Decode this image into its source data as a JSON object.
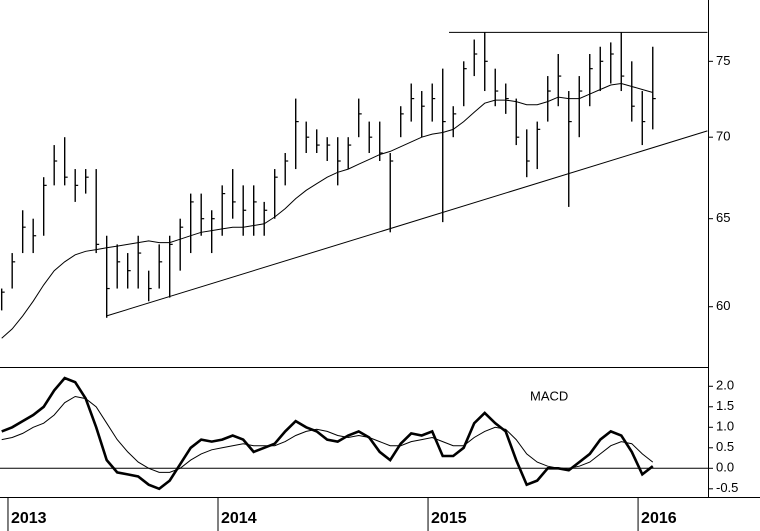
{
  "chart_data": [
    {
      "type": "ohlc",
      "log_scale": true,
      "color": "#000000",
      "x": [
        2012.97,
        2013.02,
        2013.07,
        2013.12,
        2013.17,
        2013.22,
        2013.27,
        2013.32,
        2013.37,
        2013.42,
        2013.47,
        2013.52,
        2013.57,
        2013.62,
        2013.67,
        2013.72,
        2013.77,
        2013.82,
        2013.87,
        2013.92,
        2013.97,
        2014.02,
        2014.07,
        2014.12,
        2014.17,
        2014.22,
        2014.27,
        2014.32,
        2014.37,
        2014.42,
        2014.47,
        2014.52,
        2014.57,
        2014.62,
        2014.67,
        2014.72,
        2014.77,
        2014.82,
        2014.87,
        2014.92,
        2014.97,
        2015.02,
        2015.07,
        2015.12,
        2015.17,
        2015.22,
        2015.27,
        2015.32,
        2015.37,
        2015.42,
        2015.47,
        2015.52,
        2015.57,
        2015.62,
        2015.67,
        2015.72,
        2015.77,
        2015.82,
        2015.87,
        2015.92,
        2015.97,
        2016.02,
        2016.07
      ],
      "high": [
        61,
        63,
        65.5,
        65,
        67.5,
        69.5,
        70,
        68,
        68,
        68,
        64,
        63.5,
        63,
        64,
        62,
        63.5,
        64,
        65,
        66.5,
        66.5,
        65.5,
        67,
        68,
        67,
        67,
        66,
        68,
        69,
        72.5,
        71,
        70.5,
        70,
        70,
        70,
        72.5,
        71,
        71,
        69,
        72,
        73.5,
        73,
        73.5,
        74.5,
        72,
        75,
        76.5,
        77,
        74.5,
        73.5,
        72.5,
        70.5,
        71,
        74,
        75.5,
        73,
        74,
        75.5,
        76,
        76.3,
        77,
        75,
        73,
        76
      ],
      "low": [
        59.8,
        61,
        63,
        63,
        64,
        67,
        67,
        66,
        66.5,
        63,
        59.4,
        61,
        61,
        61,
        60.3,
        61,
        60.5,
        62,
        63,
        64,
        63,
        64,
        65,
        64,
        64,
        64,
        65,
        67,
        68,
        69,
        69,
        68.5,
        67,
        68,
        70,
        69,
        68.5,
        64.2,
        70,
        71,
        70,
        71,
        64.8,
        70,
        72,
        74,
        73,
        72,
        71.5,
        69.5,
        67.5,
        68,
        71,
        72,
        65.7,
        70,
        72,
        73,
        73.5,
        73,
        71,
        69.5,
        70.5
      ],
      "close": [
        60.8,
        62.5,
        64.5,
        64,
        67,
        68.5,
        67.5,
        67,
        67.5,
        63.5,
        61,
        62.5,
        62,
        63,
        61,
        62.5,
        63.5,
        64.5,
        66,
        65,
        65,
        66.5,
        66,
        65.5,
        66,
        65.5,
        67.5,
        68.5,
        71,
        70,
        69.5,
        69.5,
        68.5,
        69.5,
        71.5,
        70,
        69,
        68.5,
        71.5,
        72.5,
        72,
        72.5,
        71,
        71.5,
        74.5,
        75.5,
        75,
        73,
        72.5,
        70,
        68.5,
        70.5,
        73,
        74,
        71,
        73,
        74.5,
        75,
        75.5,
        74,
        72,
        71,
        72.5
      ],
      "series": [
        {
          "color": "#000000",
          "values": [
            58.3,
            58.8,
            59.5,
            60.3,
            61.2,
            62,
            62.5,
            62.9,
            63.1,
            63.2,
            63.3,
            63.4,
            63.5,
            63.6,
            63.7,
            63.6,
            63.6,
            63.8,
            64,
            64.2,
            64.3,
            64.4,
            64.5,
            64.5,
            64.6,
            64.7,
            65.1,
            65.6,
            66.2,
            66.7,
            67.1,
            67.5,
            67.8,
            68,
            68.3,
            68.6,
            68.9,
            69.1,
            69.4,
            69.7,
            70,
            70.2,
            70.3,
            70.5,
            71,
            71.6,
            72.2,
            72.4,
            72.4,
            72.3,
            72.1,
            72.1,
            72.3,
            72.6,
            72.5,
            72.5,
            72.8,
            73.1,
            73.4,
            73.5,
            73.3,
            73.1,
            72.9
          ]
        }
      ],
      "lines": [
        {
          "x": [
            2013.47,
            2016.33
          ],
          "values": [
            59.5,
            70.4
          ]
        },
        {
          "x": [
            2015.1,
            2016.33
          ],
          "values": [
            77,
            77
          ]
        }
      ],
      "xlim": [
        2012.962,
        2016.333
      ],
      "ylim": [
        56.8,
        79.3
      ],
      "yticks": [
        60,
        65,
        70,
        75
      ]
    },
    {
      "type": "line",
      "annotation": "MACD",
      "reference_line": 0,
      "x": [
        2012.97,
        2013.02,
        2013.07,
        2013.12,
        2013.17,
        2013.22,
        2013.27,
        2013.32,
        2013.37,
        2013.42,
        2013.47,
        2013.52,
        2013.57,
        2013.62,
        2013.67,
        2013.72,
        2013.77,
        2013.82,
        2013.87,
        2013.92,
        2013.97,
        2014.02,
        2014.07,
        2014.12,
        2014.17,
        2014.22,
        2014.27,
        2014.32,
        2014.37,
        2014.42,
        2014.47,
        2014.52,
        2014.57,
        2014.62,
        2014.67,
        2014.72,
        2014.77,
        2014.82,
        2014.87,
        2014.92,
        2014.97,
        2015.02,
        2015.07,
        2015.12,
        2015.17,
        2015.22,
        2015.27,
        2015.32,
        2015.37,
        2015.42,
        2015.47,
        2015.52,
        2015.57,
        2015.62,
        2015.67,
        2015.72,
        2015.77,
        2015.82,
        2015.87,
        2015.92,
        2015.97,
        2016.02,
        2016.07
      ],
      "series": [
        {
          "color": "#000000",
          "width": 2.6,
          "values": [
            0.9,
            1.0,
            1.15,
            1.3,
            1.5,
            1.9,
            2.2,
            2.1,
            1.7,
            1.0,
            0.2,
            -0.1,
            -0.15,
            -0.2,
            -0.4,
            -0.5,
            -0.3,
            0.1,
            0.5,
            0.7,
            0.65,
            0.7,
            0.8,
            0.7,
            0.4,
            0.5,
            0.6,
            0.9,
            1.15,
            1.0,
            0.9,
            0.7,
            0.65,
            0.8,
            0.9,
            0.75,
            0.4,
            0.2,
            0.6,
            0.85,
            0.8,
            0.9,
            0.3,
            0.3,
            0.5,
            1.1,
            1.35,
            1.1,
            0.9,
            0.2,
            -0.4,
            -0.3,
            0.0,
            0.0,
            -0.05,
            0.15,
            0.35,
            0.7,
            0.9,
            0.8,
            0.4,
            -0.15,
            0.05
          ]
        },
        {
          "color": "#000000",
          "width": 1,
          "values": [
            0.7,
            0.75,
            0.85,
            1.0,
            1.1,
            1.3,
            1.6,
            1.75,
            1.7,
            1.5,
            1.1,
            0.7,
            0.4,
            0.15,
            0.0,
            -0.1,
            -0.1,
            0.0,
            0.2,
            0.35,
            0.45,
            0.5,
            0.55,
            0.6,
            0.55,
            0.55,
            0.55,
            0.65,
            0.8,
            0.9,
            0.95,
            0.9,
            0.8,
            0.75,
            0.8,
            0.75,
            0.65,
            0.55,
            0.55,
            0.65,
            0.7,
            0.75,
            0.65,
            0.55,
            0.55,
            0.75,
            0.9,
            1.0,
            0.95,
            0.7,
            0.35,
            0.15,
            0.05,
            0.0,
            0.0,
            0.05,
            0.15,
            0.35,
            0.55,
            0.65,
            0.6,
            0.35,
            0.15
          ]
        }
      ],
      "xlim": [
        2012.962,
        2016.333
      ],
      "ylim": [
        -0.7,
        2.47
      ],
      "yticks": [
        {
          "value": 2,
          "label": "2.0"
        },
        {
          "value": 1.5,
          "label": "1.5"
        },
        {
          "value": 1,
          "label": "1.0"
        },
        {
          "value": 0.5,
          "label": "0.5"
        },
        {
          "value": 0,
          "label": "0.0"
        },
        {
          "value": -0.5,
          "label": "-0.5"
        }
      ],
      "xticks": [
        2013,
        2014,
        2015,
        2016
      ]
    }
  ]
}
